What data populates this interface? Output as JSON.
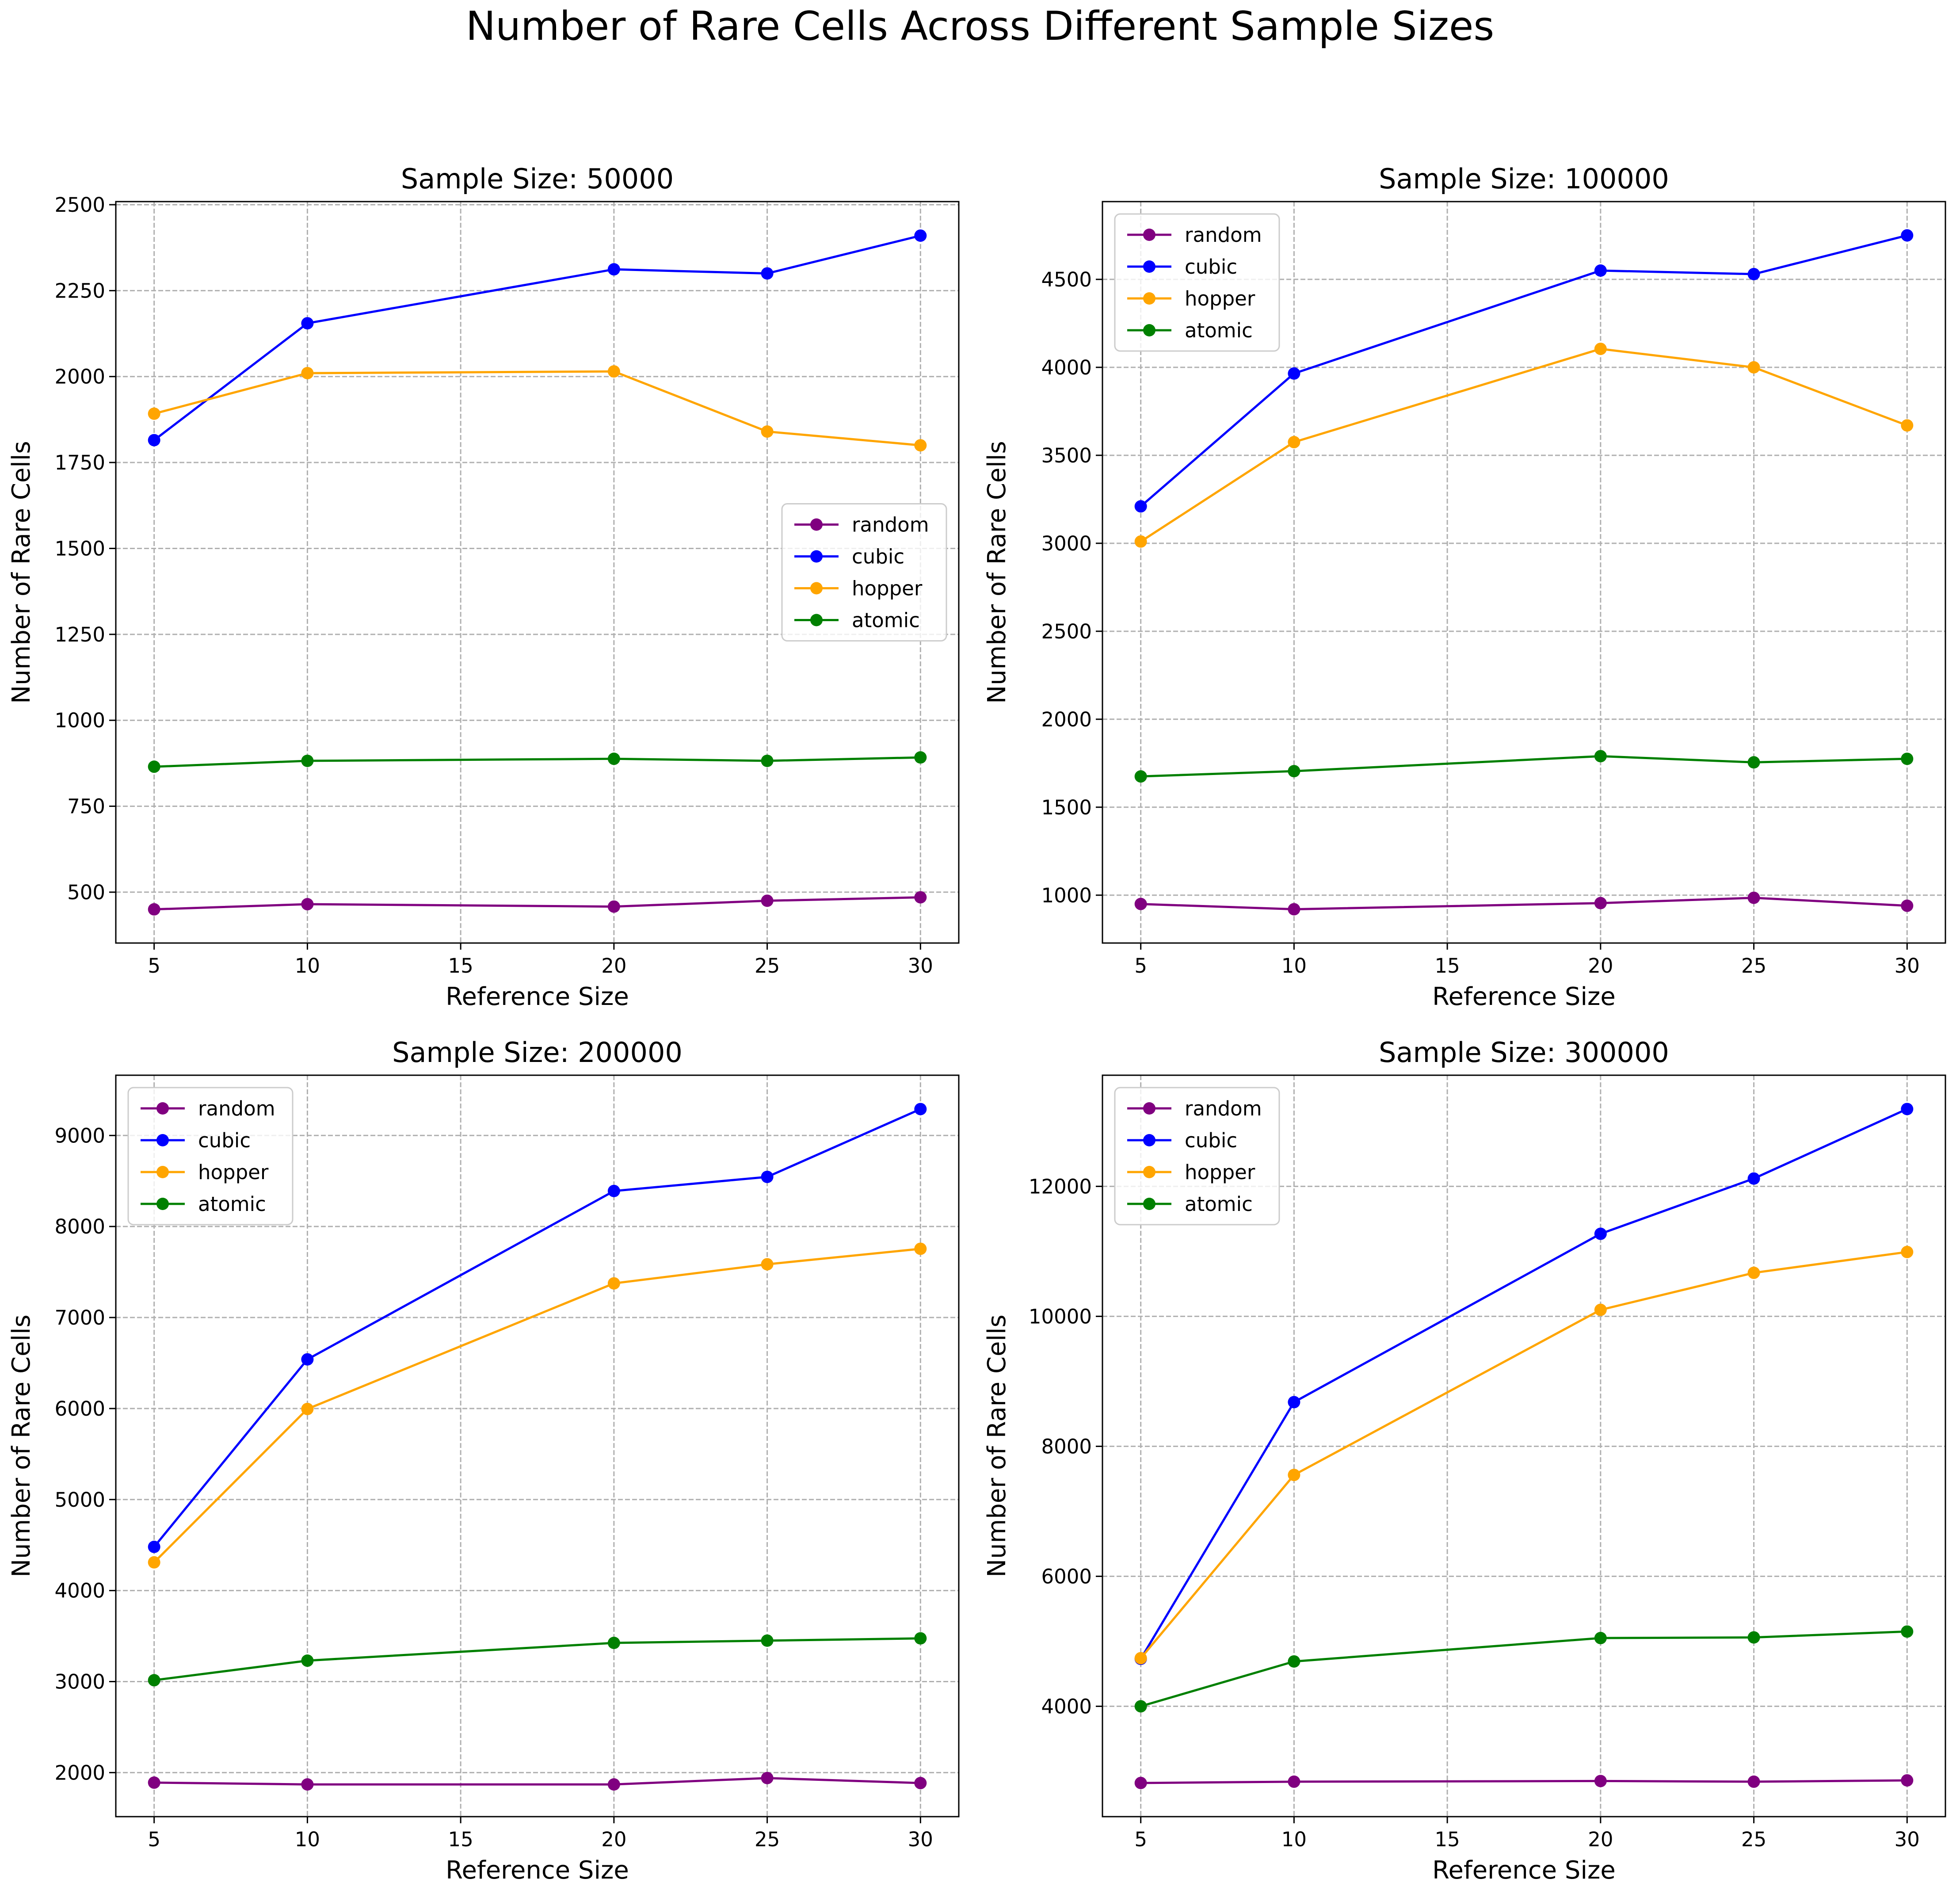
{
  "figure": {
    "title": "Number of Rare Cells Across Different Sample Sizes"
  },
  "chart_data": [
    {
      "type": "line",
      "title": "Sample Size: 50000",
      "xlabel": "Reference Size",
      "ylabel": "Number of Rare Cells",
      "x": [
        5,
        10,
        20,
        25,
        30
      ],
      "xticks": [
        5,
        10,
        15,
        20,
        25,
        30
      ],
      "xlim": [
        3.75,
        31.25
      ],
      "yticks": [
        500,
        750,
        1000,
        1250,
        1500,
        1750,
        2000,
        2250,
        2500
      ],
      "ylim": [
        352,
        2509
      ],
      "grid": true,
      "legend_position": "center-right",
      "series": [
        {
          "name": "random",
          "color": "#800080",
          "values": [
            450,
            465,
            458,
            475,
            485
          ]
        },
        {
          "name": "cubic",
          "color": "#0000ff",
          "values": [
            1815,
            2155,
            2312,
            2300,
            2410
          ]
        },
        {
          "name": "hopper",
          "color": "#ffa500",
          "values": [
            1892,
            2010,
            2015,
            1840,
            1800
          ]
        },
        {
          "name": "atomic",
          "color": "#008000",
          "values": [
            865,
            882,
            888,
            882,
            892
          ]
        }
      ]
    },
    {
      "type": "line",
      "title": "Sample Size: 100000",
      "xlabel": "Reference Size",
      "ylabel": "Number of Rare Cells",
      "x": [
        5,
        10,
        20,
        25,
        30
      ],
      "xticks": [
        5,
        10,
        15,
        20,
        25,
        30
      ],
      "xlim": [
        3.75,
        31.25
      ],
      "yticks": [
        1000,
        1500,
        2000,
        2500,
        3000,
        3500,
        4000,
        4500
      ],
      "ylim": [
        728,
        4942
      ],
      "grid": true,
      "legend_position": "top-left",
      "series": [
        {
          "name": "random",
          "color": "#800080",
          "values": [
            950,
            920,
            955,
            985,
            940
          ]
        },
        {
          "name": "cubic",
          "color": "#0000ff",
          "values": [
            3210,
            3965,
            4550,
            4530,
            4750
          ]
        },
        {
          "name": "hopper",
          "color": "#ffa500",
          "values": [
            3010,
            3575,
            4105,
            4000,
            3670
          ]
        },
        {
          "name": "atomic",
          "color": "#008000",
          "values": [
            1675,
            1705,
            1790,
            1755,
            1775
          ]
        }
      ]
    },
    {
      "type": "line",
      "title": "Sample Size: 200000",
      "xlabel": "Reference Size",
      "ylabel": "Number of Rare Cells",
      "x": [
        5,
        10,
        20,
        25,
        30
      ],
      "xticks": [
        5,
        10,
        15,
        20,
        25,
        30
      ],
      "xlim": [
        3.75,
        31.25
      ],
      "yticks": [
        2000,
        3000,
        4000,
        5000,
        6000,
        7000,
        8000,
        9000
      ],
      "ylim": [
        1516,
        9662
      ],
      "grid": true,
      "legend_position": "top-left",
      "series": [
        {
          "name": "random",
          "color": "#800080",
          "values": [
            1890,
            1870,
            1870,
            1940,
            1885
          ]
        },
        {
          "name": "cubic",
          "color": "#0000ff",
          "values": [
            4480,
            6540,
            8390,
            8545,
            9290
          ]
        },
        {
          "name": "hopper",
          "color": "#ffa500",
          "values": [
            4310,
            5995,
            7375,
            7585,
            7755
          ]
        },
        {
          "name": "atomic",
          "color": "#008000",
          "values": [
            3015,
            3230,
            3425,
            3450,
            3475
          ]
        }
      ]
    },
    {
      "type": "line",
      "title": "Sample Size: 300000",
      "xlabel": "Reference Size",
      "ylabel": "Number of Rare Cells",
      "x": [
        5,
        10,
        20,
        25,
        30
      ],
      "xticks": [
        5,
        10,
        15,
        20,
        25,
        30
      ],
      "xlim": [
        3.75,
        31.25
      ],
      "yticks": [
        4000,
        6000,
        8000,
        10000,
        12000
      ],
      "ylim": [
        2302,
        13710
      ],
      "grid": true,
      "legend_position": "top-left",
      "series": [
        {
          "name": "random",
          "color": "#800080",
          "values": [
            2820,
            2840,
            2850,
            2840,
            2860
          ]
        },
        {
          "name": "cubic",
          "color": "#0000ff",
          "values": [
            4730,
            8680,
            11270,
            12120,
            13190
          ]
        },
        {
          "name": "hopper",
          "color": "#ffa500",
          "values": [
            4740,
            7560,
            10100,
            10670,
            10990
          ]
        },
        {
          "name": "atomic",
          "color": "#008000",
          "values": [
            4000,
            4690,
            5050,
            5060,
            5150
          ]
        }
      ]
    }
  ]
}
